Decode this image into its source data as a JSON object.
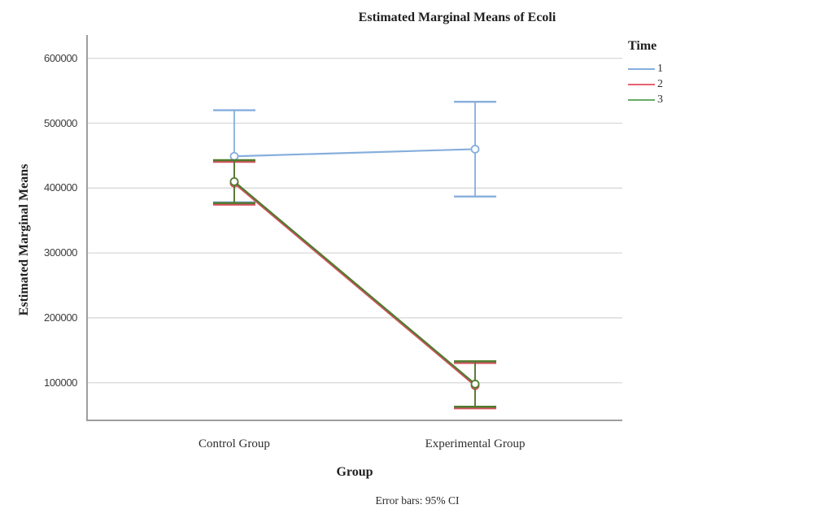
{
  "chart_data": {
    "type": "line",
    "title": "Estimated Marginal Means of Ecoli",
    "xlabel": "Group",
    "ylabel": "Estimated Marginal Means",
    "footnote": "Error bars: 95% CI",
    "legend_title": "Time",
    "legend_position": "top-right-outside",
    "grid": "horizontal",
    "error_bars": "95% CI",
    "categories": [
      "Control Group",
      "Experimental Group"
    ],
    "yticks": [
      100000,
      200000,
      300000,
      400000,
      500000,
      600000
    ],
    "ylim": [
      42000,
      636000
    ],
    "colors": {
      "gridline": "#d8d8d8",
      "axis": "#9e9e9e",
      "series1_blue": "#86aedd",
      "series2_red": "#d4525f",
      "series3_green": "#4e7b2e"
    },
    "series": [
      {
        "name": "1",
        "color": "#86aedd",
        "legend_color": "#86aedd",
        "values": [
          449000,
          460000
        ],
        "ci_low": [
          378000,
          387000
        ],
        "ci_high": [
          520000,
          533000
        ]
      },
      {
        "name": "2",
        "color": "#d4525f",
        "legend_color": "#e56270",
        "values": [
          407500,
          95500
        ],
        "ci_low": [
          374500,
          60500
        ],
        "ci_high": [
          440500,
          130500
        ]
      },
      {
        "name": "3",
        "color": "#4e7b2e",
        "legend_color": "#68ab68",
        "values": [
          410000,
          98000
        ],
        "ci_low": [
          377000,
          63000
        ],
        "ci_high": [
          443000,
          133000
        ]
      }
    ]
  }
}
